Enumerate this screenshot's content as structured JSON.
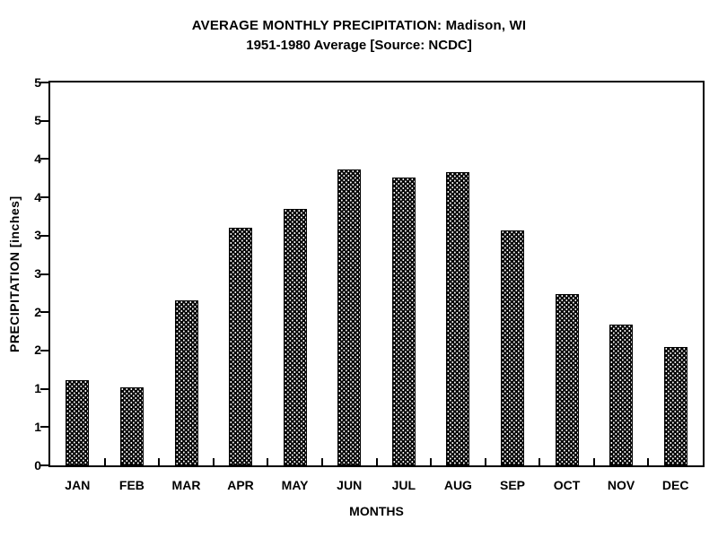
{
  "page": {
    "background": "#ffffff",
    "foreground": "#000000"
  },
  "chart_data": {
    "type": "bar",
    "title": "AVERAGE MONTHLY PRECIPITATION: Madison, WI",
    "subtitle": "1951-1980 Average [Source: NCDC]",
    "xlabel": "MONTHS",
    "ylabel": "PRECIPITATION [inches]",
    "categories": [
      "JAN",
      "FEB",
      "MAR",
      "APR",
      "MAY",
      "JUN",
      "JUL",
      "AUG",
      "SEP",
      "OCT",
      "NOV",
      "DEC"
    ],
    "values": [
      1.11,
      1.02,
      2.15,
      3.1,
      3.35,
      3.87,
      3.76,
      3.83,
      3.07,
      2.24,
      1.84,
      1.55
    ],
    "ylim": [
      0,
      5
    ],
    "ytick_interval": 0.5,
    "ytick_labels_bottom_to_top": [
      "0",
      "1",
      "1",
      "2",
      "2",
      "3",
      "3",
      "4",
      "4",
      "5",
      "5"
    ],
    "grid": false,
    "legend_position": "none",
    "bar_fill": "halftone-dot-pattern",
    "bar_color": "#000000",
    "axis_color": "#000000",
    "plot_background": "#ffffff",
    "frame": true
  }
}
